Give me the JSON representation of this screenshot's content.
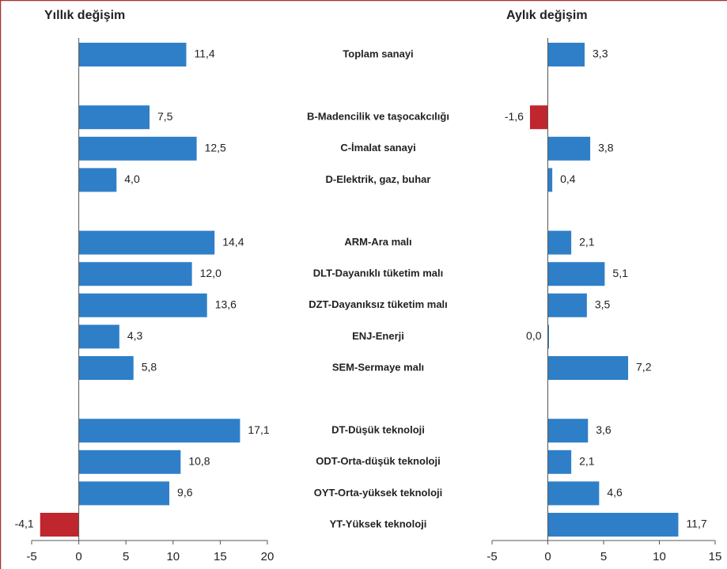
{
  "chart_data": [
    {
      "type": "hbar",
      "title": "Yıllık değişim",
      "categories": [
        "Toplam sanayi",
        null,
        "B-Madencilik ve taşocakcılığı",
        "C-İmalat sanayi",
        "D-Elektrik, gaz, buhar",
        null,
        "ARM-Ara malı",
        "DLT-Dayanıklı tüketim malı",
        "DZT-Dayanıksız tüketim malı",
        "ENJ-Enerji",
        "SEM-Sermaye malı",
        null,
        "DT-Düşük teknoloji",
        "ODT-Orta-düşük teknoloji",
        "OYT-Orta-yüksek teknoloji",
        "YT-Yüksek teknoloji"
      ],
      "values": [
        11.4,
        null,
        7.5,
        12.5,
        4.0,
        null,
        14.4,
        12.0,
        13.6,
        4.3,
        5.8,
        null,
        17.1,
        10.8,
        9.6,
        -4.1
      ],
      "value_labels": [
        "11,4",
        null,
        "7,5",
        "12,5",
        "4,0",
        null,
        "14,4",
        "12,0",
        "13,6",
        "4,3",
        "5,8",
        null,
        "17,1",
        "10,8",
        "9,6",
        "-4,1"
      ],
      "color": "#2f7fc8",
      "negative_color": "#c0262d",
      "xlim": [
        -5,
        20
      ],
      "xticks": [
        -5,
        0,
        5,
        10,
        15,
        20
      ]
    },
    {
      "type": "hbar",
      "title": "Aylık değişim",
      "values": [
        3.3,
        null,
        -1.6,
        3.8,
        0.4,
        null,
        2.1,
        5.1,
        3.5,
        0.0,
        7.2,
        null,
        3.6,
        2.1,
        4.6,
        11.7
      ],
      "value_labels": [
        "3,3",
        null,
        "-1,6",
        "3,8",
        "0,4",
        null,
        "2,1",
        "5,1",
        "3,5",
        "0,0",
        "7,2",
        null,
        "3,6",
        "2,1",
        "4,6",
        "11,7"
      ],
      "color": "#2f7fc8",
      "negative_color": "#c0262d",
      "xlim": [
        -5,
        15
      ],
      "xticks": [
        -5,
        0,
        5,
        10,
        15
      ]
    }
  ]
}
